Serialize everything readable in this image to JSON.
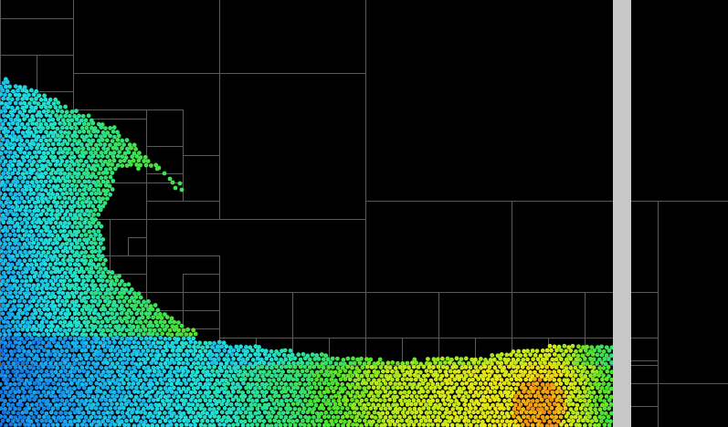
{
  "simulation": {
    "background_color": "#000000",
    "grid_color": "#5a5a5a",
    "wall_color": "#c8c8c8",
    "colormap": [
      "#1565e0",
      "#19a8ef",
      "#1fe0e0",
      "#2fe080",
      "#4ee22c",
      "#b8ea1a",
      "#f0e614",
      "#f3a512",
      "#f06210"
    ],
    "particle_spacing": 5.2,
    "particle_radius": 2.4
  }
}
